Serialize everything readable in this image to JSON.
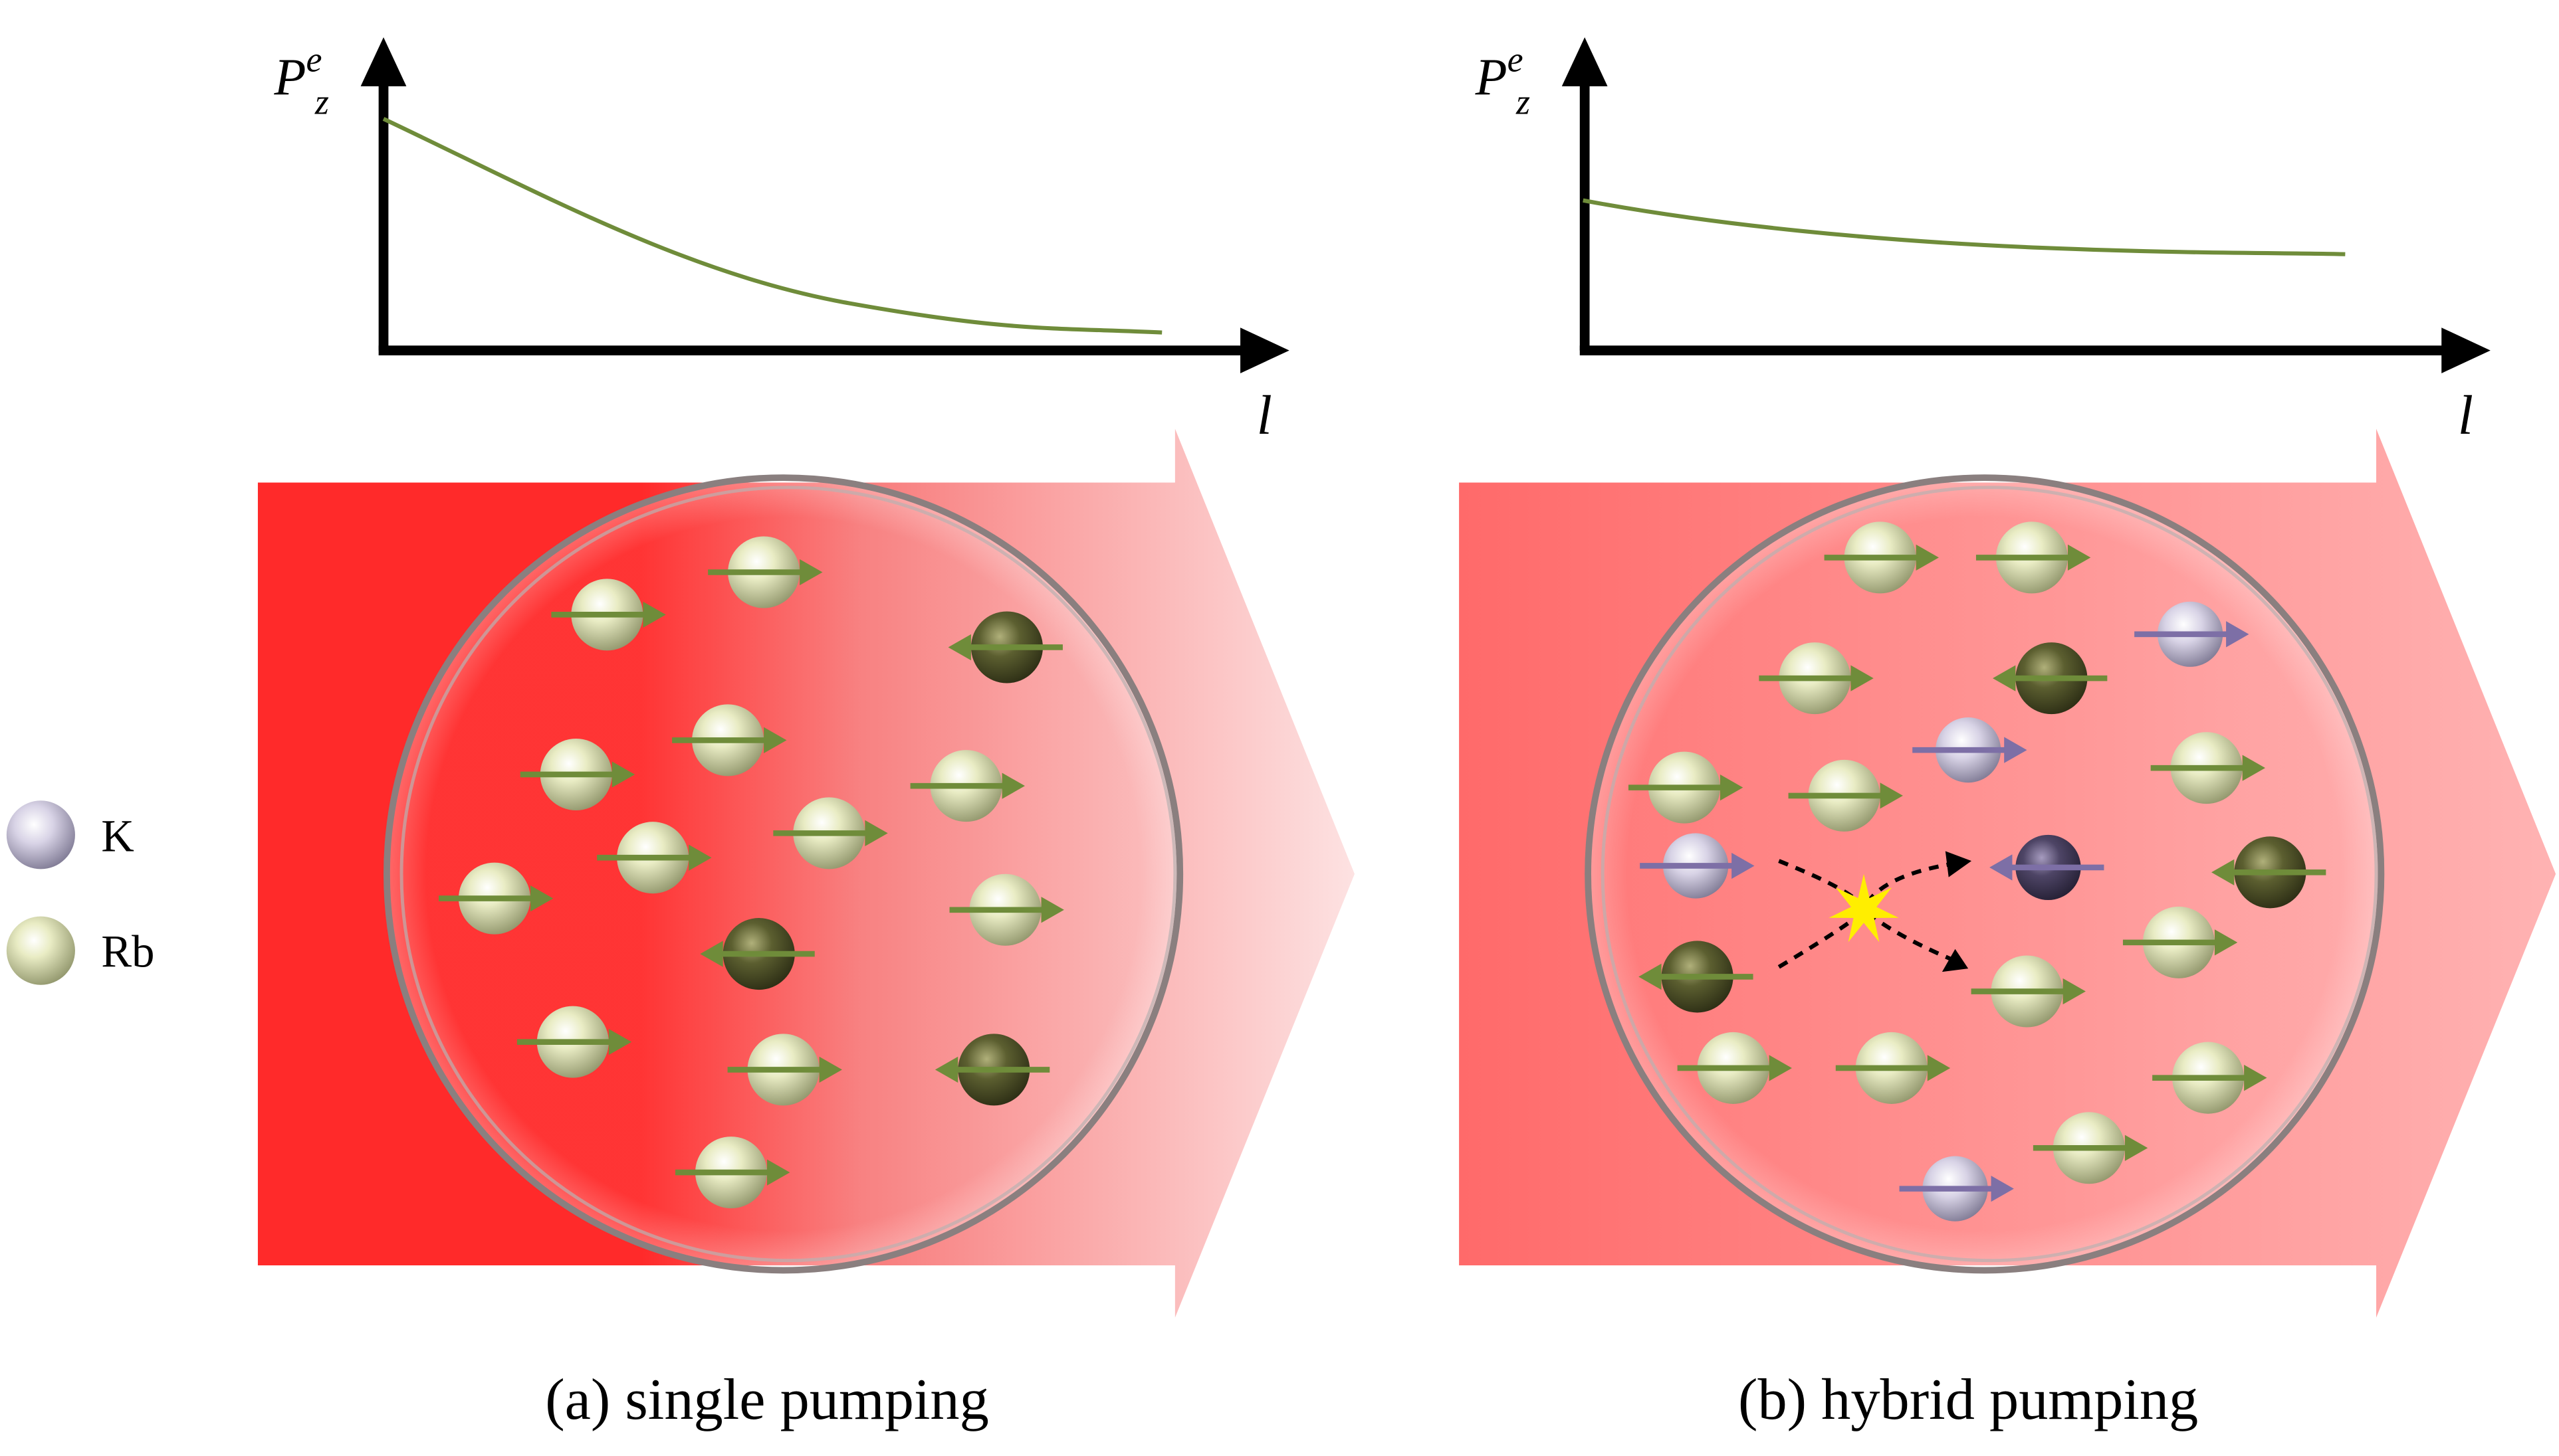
{
  "panels": [
    {
      "y_axis": {
        "symbol": "P",
        "superscript": "e",
        "subscript": "z"
      },
      "x_axis": "l",
      "caption": "(a) single pumping"
    },
    {
      "y_axis": {
        "symbol": "P",
        "superscript": "e",
        "subscript": "z"
      },
      "x_axis": "l",
      "caption": "(b) hybrid pumping"
    }
  ],
  "legend": [
    {
      "label": "K"
    },
    {
      "label": "Rb"
    }
  ]
}
